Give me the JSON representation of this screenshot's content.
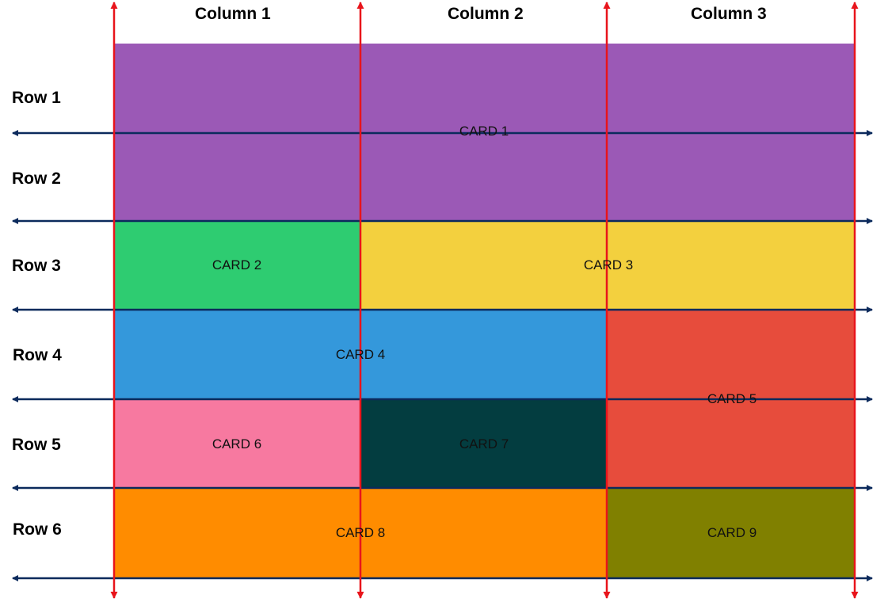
{
  "columns": [
    "Column 1",
    "Column 2",
    "Column 3"
  ],
  "rows": [
    "Row 1",
    "Row 2",
    "Row 3",
    "Row 4",
    "Row 5",
    "Row 6"
  ],
  "cards": [
    {
      "label": "CARD 1",
      "color": "#9b59b6"
    },
    {
      "label": "CARD 2",
      "color": "#2ecc71"
    },
    {
      "label": "CARD 3",
      "color": "#f3d03e"
    },
    {
      "label": "CARD 4",
      "color": "#3498db"
    },
    {
      "label": "CARD 5",
      "color": "#e74c3c"
    },
    {
      "label": "CARD 6",
      "color": "#f779a0"
    },
    {
      "label": "CARD 7",
      "color": "#033d40"
    },
    {
      "label": "CARD 8",
      "color": "#ff8c00"
    },
    {
      "label": "CARD 9",
      "color": "#808000"
    }
  ],
  "line_colors": {
    "column_lines": "#e8141b",
    "row_lines": "#0b2a5c"
  }
}
